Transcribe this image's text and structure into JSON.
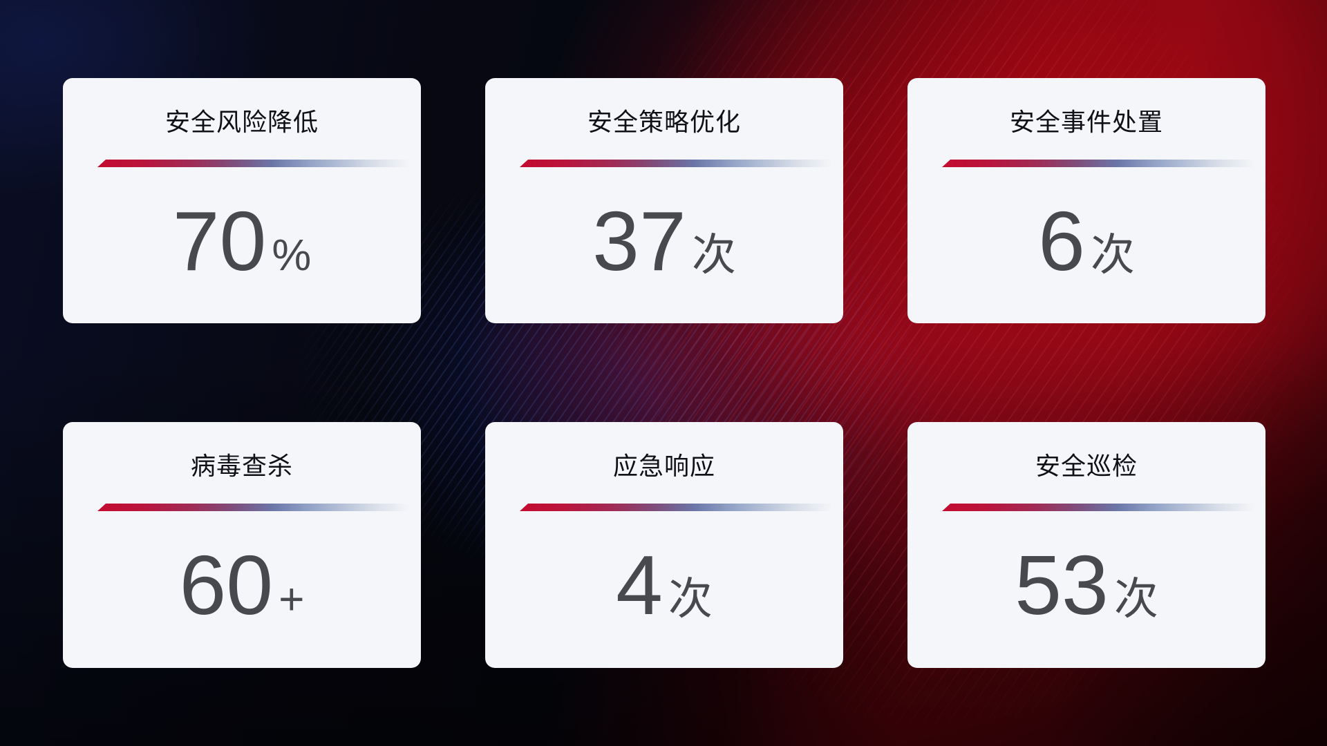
{
  "cards": [
    {
      "title": "安全风险降低",
      "value": "70",
      "unit": "%"
    },
    {
      "title": "安全策略优化",
      "value": "37",
      "unit": "次"
    },
    {
      "title": "安全事件处置",
      "value": "6",
      "unit": "次"
    },
    {
      "title": "病毒查杀",
      "value": "60",
      "unit": "+"
    },
    {
      "title": "应急响应",
      "value": "4",
      "unit": "次"
    },
    {
      "title": "安全巡检",
      "value": "53",
      "unit": "次"
    }
  ],
  "colors": {
    "card_background": "#f5f6f9",
    "title_text": "#101016",
    "value_text": "#48494e",
    "divider_red": "#c30c2f",
    "divider_blue": "#b8c3d9",
    "background_red_glow": "#8e0812",
    "background_blue_glow": "#162c96",
    "background_base": "#06070f"
  }
}
